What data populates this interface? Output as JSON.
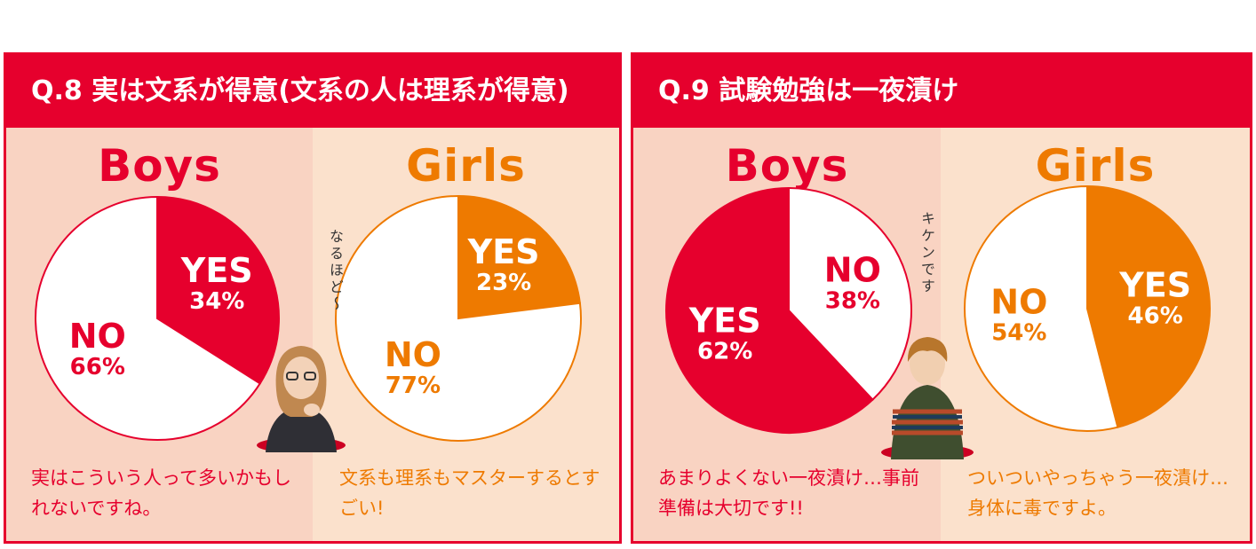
{
  "chart_data": [
    {
      "type": "pie",
      "title": "Q.8 実は文系が得意(文系の人は理系が得意)",
      "group": "Boys",
      "slices": [
        {
          "label": "YES",
          "value": 34,
          "display": "34%",
          "color": "#e6002d"
        },
        {
          "label": "NO",
          "value": 66,
          "display": "66%",
          "color": "#ffffff"
        }
      ]
    },
    {
      "type": "pie",
      "title": "Q.8 実は文系が得意(文系の人は理系が得意)",
      "group": "Girls",
      "slices": [
        {
          "label": "YES",
          "value": 23,
          "display": "23%",
          "color": "#ee7a00"
        },
        {
          "label": "NO",
          "value": 77,
          "display": "77%",
          "color": "#ffffff"
        }
      ]
    },
    {
      "type": "pie",
      "title": "Q.9 試験勉強は一夜漬け",
      "group": "Boys",
      "slices": [
        {
          "label": "YES",
          "value": 62,
          "display": "62%",
          "color": "#e6002d"
        },
        {
          "label": "NO",
          "value": 38,
          "display": "38%",
          "color": "#ffffff"
        }
      ]
    },
    {
      "type": "pie",
      "title": "Q.9 試験勉強は一夜漬け",
      "group": "Girls",
      "slices": [
        {
          "label": "YES",
          "value": 46,
          "display": "46%",
          "color": "#ee7a00"
        },
        {
          "label": "NO",
          "value": 54,
          "display": "54%",
          "color": "#ffffff"
        }
      ]
    }
  ],
  "q8": {
    "title": "Q.8 実は文系が得意(文系の人は理系が得意)",
    "boys_label": "Boys",
    "girls_label": "Girls",
    "boys_comment": "実はこういう人って多いかもしれないですね。",
    "girls_comment": "文系も理系もマスターするとすごい!",
    "aside": "なるほど〜"
  },
  "q9": {
    "title": "Q.9 試験勉強は一夜漬け",
    "boys_label": "Boys",
    "girls_label": "Girls",
    "boys_comment": "あまりよくない一夜漬け…事前準備は大切です!!",
    "girls_comment": "ついついやっちゃう一夜漬け…身体に毒ですよ。",
    "aside": "キケンです"
  },
  "colors": {
    "boys": "#e6002d",
    "girls": "#ee7a00"
  }
}
